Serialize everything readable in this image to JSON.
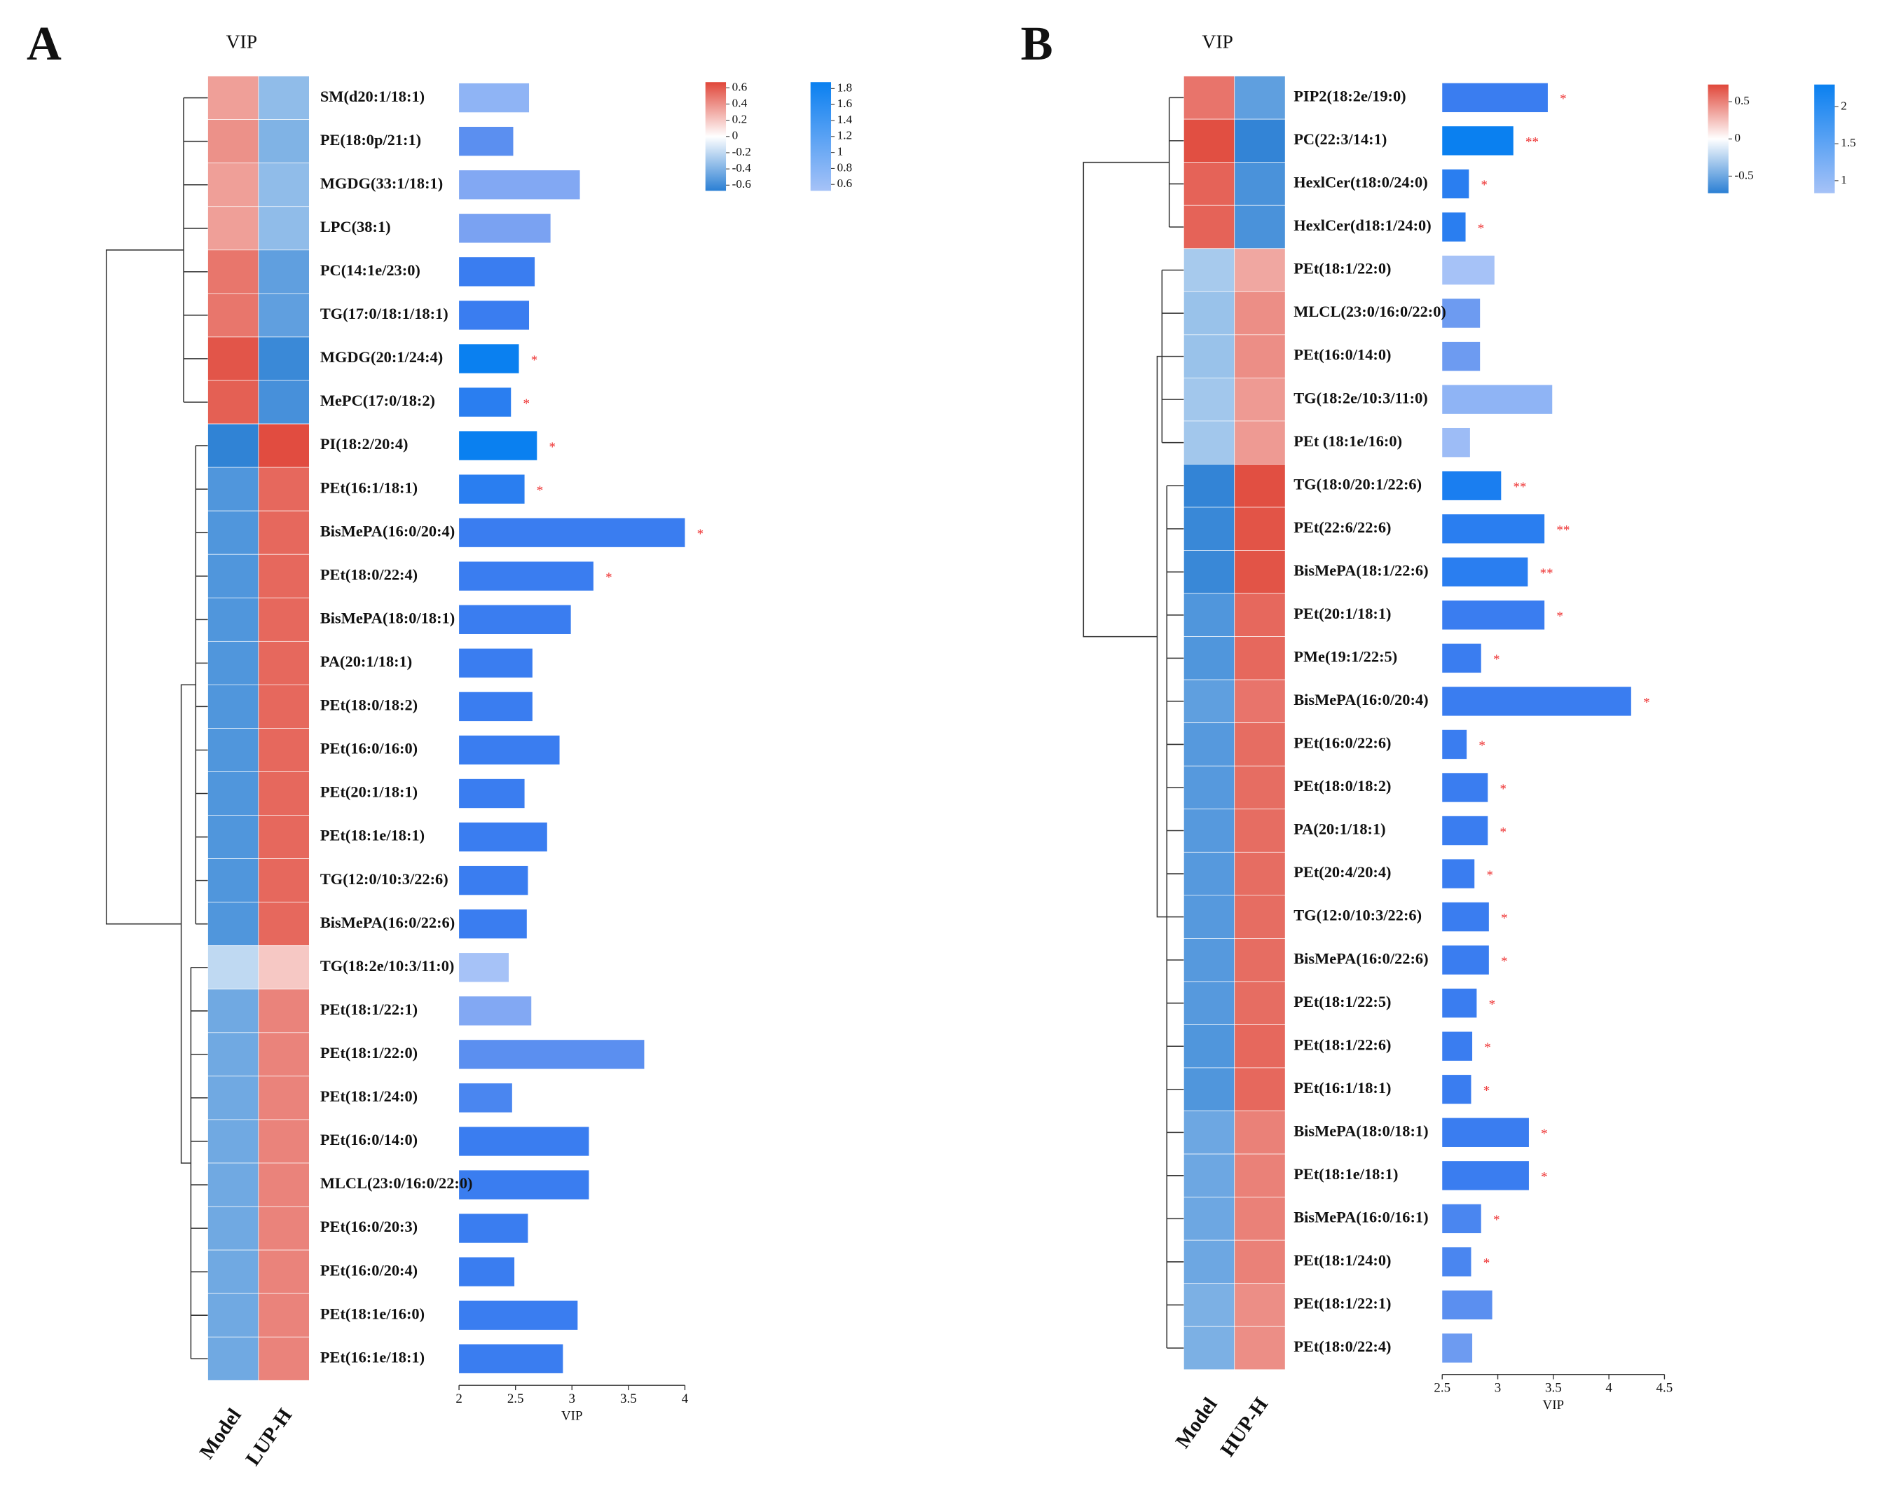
{
  "chart_data": [
    {
      "type": "heatmap-bar",
      "panel": "A",
      "heatmap_title": "VIP",
      "rows": [
        "SM(d20:1/18:1)",
        "PE(18:0p/21:1)",
        "MGDG(33:1/18:1)",
        "LPC(38:1)",
        "PC(14:1e/23:0)",
        "TG(17:0/18:1/18:1)",
        "MGDG(20:1/24:4)",
        "MePC(17:0/18:2)",
        "PI(18:2/20:4)",
        "PEt(16:1/18:1)",
        "BisMePA(16:0/20:4)",
        "PEt(18:0/22:4)",
        "BisMePA(18:0/18:1)",
        "PA(20:1/18:1)",
        "PEt(18:0/18:2)",
        "PEt(16:0/16:0)",
        "PEt(20:1/18:1)",
        "PEt(18:1e/18:1)",
        "TG(12:0/10:3/22:6)",
        "BisMePA(16:0/22:6)",
        "TG(18:2e/10:3/11:0)",
        "PEt(18:1/22:1)",
        "PEt(18:1/22:0)",
        "PEt(18:1/24:0)",
        "PEt(16:0/14:0)",
        "MLCL(23:0/16:0/22:0)",
        "PEt(16:0/20:3)",
        "PEt(16:0/20:4)",
        "PEt(18:1e/16:0)",
        "PEt(16:1e/18:1)"
      ],
      "series": [
        {
          "name": "Model",
          "values": [
            0.35,
            0.4,
            0.35,
            0.35,
            0.5,
            0.5,
            0.62,
            0.58,
            -0.65,
            -0.55,
            -0.55,
            -0.55,
            -0.55,
            -0.55,
            -0.55,
            -0.55,
            -0.55,
            -0.55,
            -0.55,
            -0.55,
            -0.2,
            -0.45,
            -0.45,
            -0.45,
            -0.45,
            -0.45,
            -0.45,
            -0.45,
            -0.45,
            -0.45
          ]
        },
        {
          "name": "LUP-H",
          "values": [
            -0.35,
            -0.4,
            -0.35,
            -0.35,
            -0.5,
            -0.5,
            -0.62,
            -0.58,
            0.65,
            0.55,
            0.55,
            0.55,
            0.55,
            0.55,
            0.55,
            0.55,
            0.55,
            0.55,
            0.55,
            0.55,
            0.2,
            0.45,
            0.45,
            0.45,
            0.45,
            0.45,
            0.45,
            0.45,
            0.45,
            0.45
          ]
        }
      ],
      "clim": [
        -0.67,
        0.67
      ],
      "cticks": [
        0.6,
        0.4,
        0.2,
        0,
        -0.2,
        -0.4,
        -0.6
      ],
      "vip": [
        2.62,
        2.48,
        3.07,
        2.81,
        2.67,
        2.62,
        2.53,
        2.46,
        2.69,
        2.58,
        4.0,
        3.19,
        2.99,
        2.65,
        2.65,
        2.89,
        2.58,
        2.78,
        2.61,
        2.6,
        2.44,
        2.64,
        3.64,
        2.47,
        3.15,
        3.15,
        2.61,
        2.49,
        3.05,
        2.92
      ],
      "bar_colors": [
        "#8fb4f5",
        "#5b8ff0",
        "#82a8f3",
        "#7aa2f2",
        "#3a7df0",
        "#3a7df0",
        "#0a80f0",
        "#2a7ef0",
        "#0a80f0",
        "#2a7ef0",
        "#3a7df0",
        "#3a7df0",
        "#3a7df0",
        "#3a7df0",
        "#3a7df0",
        "#3a7df0",
        "#3a7df0",
        "#3a7df0",
        "#3a7df0",
        "#3a7df0",
        "#a6c2f7",
        "#82a8f3",
        "#5b8ff0",
        "#4a86f0",
        "#3a7df0",
        "#3a7df0",
        "#3a7df0",
        "#3a7df0",
        "#3a7df0",
        "#3a7df0"
      ],
      "stars": [
        null,
        null,
        null,
        null,
        null,
        null,
        "*",
        "*",
        "*",
        "*",
        "*",
        "*",
        null,
        null,
        null,
        null,
        null,
        null,
        null,
        null,
        null,
        null,
        null,
        null,
        null,
        null,
        null,
        null,
        null,
        null
      ],
      "xlabel": "VIP",
      "xlim": [
        2,
        4
      ],
      "xticks": [
        2,
        2.5,
        3,
        3.5,
        4
      ],
      "vip_clim": [
        0.52,
        1.88
      ],
      "vip_cticks": [
        1.8,
        1.6,
        1.4,
        1.2,
        1,
        0.8,
        0.6
      ]
    },
    {
      "type": "heatmap-bar",
      "panel": "B",
      "heatmap_title": "VIP",
      "rows": [
        "PIP2(18:2e/19:0)",
        "PC(22:3/14:1)",
        "HexlCer(t18:0/24:0)",
        "HexlCer(d18:1/24:0)",
        "PEt(18:1/22:0)",
        "MLCL(23:0/16:0/22:0)",
        "PEt(16:0/14:0)",
        "TG(18:2e/10:3/11:0)",
        "PEt (18:1e/16:0)",
        "TG(18:0/20:1/22:6)",
        "PEt(22:6/22:6)",
        "BisMePA(18:1/22:6)",
        "PEt(20:1/18:1)",
        "PMe(19:1/22:5)",
        "BisMePA(16:0/20:4)",
        "PEt(16:0/22:6)",
        "PEt(18:0/18:2)",
        "PA(20:1/18:1)",
        "PEt(20:4/20:4)",
        "TG(12:0/10:3/22:6)",
        "BisMePA(16:0/22:6)",
        "PEt(18:1/22:5)",
        "PEt(18:1/22:6)",
        "PEt(16:1/18:1)",
        "BisMePA(18:0/18:1)",
        "PEt(18:1e/18:1)",
        "BisMePA(16:0/16:1)",
        "PEt(18:1/24:0)",
        "PEt(18:1/22:1)",
        "PEt(18:0/22:4)"
      ],
      "series": [
        {
          "name": "Model",
          "values": [
            0.55,
            0.7,
            0.62,
            0.62,
            -0.3,
            -0.35,
            -0.35,
            -0.32,
            -0.32,
            -0.7,
            -0.68,
            -0.68,
            -0.6,
            -0.6,
            -0.55,
            -0.58,
            -0.58,
            -0.58,
            -0.58,
            -0.58,
            -0.58,
            -0.58,
            -0.6,
            -0.6,
            -0.5,
            -0.5,
            -0.5,
            -0.5,
            -0.45,
            -0.45
          ]
        },
        {
          "name": "HUP-H",
          "values": [
            -0.55,
            -0.7,
            -0.62,
            -0.62,
            0.35,
            0.45,
            0.45,
            0.4,
            0.4,
            0.7,
            0.68,
            0.68,
            0.6,
            0.6,
            0.55,
            0.58,
            0.58,
            0.58,
            0.58,
            0.58,
            0.58,
            0.58,
            0.6,
            0.6,
            0.5,
            0.5,
            0.5,
            0.5,
            0.45,
            0.45
          ]
        }
      ],
      "clim": [
        -0.73,
        0.73
      ],
      "cticks": [
        0.5,
        0,
        -0.5
      ],
      "vip": [
        3.45,
        3.14,
        2.74,
        2.71,
        2.97,
        2.84,
        2.84,
        3.49,
        2.75,
        3.03,
        3.42,
        3.27,
        3.42,
        2.85,
        4.2,
        2.72,
        2.91,
        2.91,
        2.79,
        2.92,
        2.92,
        2.81,
        2.77,
        2.76,
        3.28,
        3.28,
        2.85,
        2.76,
        2.95,
        2.77
      ],
      "bar_colors": [
        "#3a7df0",
        "#0a80f0",
        "#2a7ef0",
        "#2a7ef0",
        "#a6c2f7",
        "#6d9bf1",
        "#6d9bf1",
        "#8fb4f5",
        "#9dbcf6",
        "#1a7ef0",
        "#2a7ef0",
        "#2a7ef0",
        "#3a7df0",
        "#3a7df0",
        "#3a7df0",
        "#3a7df0",
        "#3a7df0",
        "#3a7df0",
        "#3a7df0",
        "#3a7df0",
        "#3a7df0",
        "#3a7df0",
        "#3a7df0",
        "#3a7df0",
        "#3a7df0",
        "#3a7df0",
        "#4a86f0",
        "#4a86f0",
        "#5b8ff0",
        "#6d9bf1"
      ],
      "stars": [
        "*",
        "**",
        "*",
        "*",
        null,
        null,
        null,
        null,
        null,
        "**",
        "**",
        "**",
        "*",
        "*",
        "*",
        "*",
        "*",
        "*",
        "*",
        "*",
        "*",
        "*",
        "*",
        "*",
        "*",
        "*",
        "*",
        "*",
        null,
        null
      ],
      "xlabel": "VIP",
      "xlim": [
        2.5,
        4.5
      ],
      "xticks": [
        2.5,
        3,
        3.5,
        4,
        4.5
      ],
      "vip_clim": [
        0.83,
        2.3
      ],
      "vip_cticks": [
        2,
        1.5,
        1
      ]
    }
  ]
}
